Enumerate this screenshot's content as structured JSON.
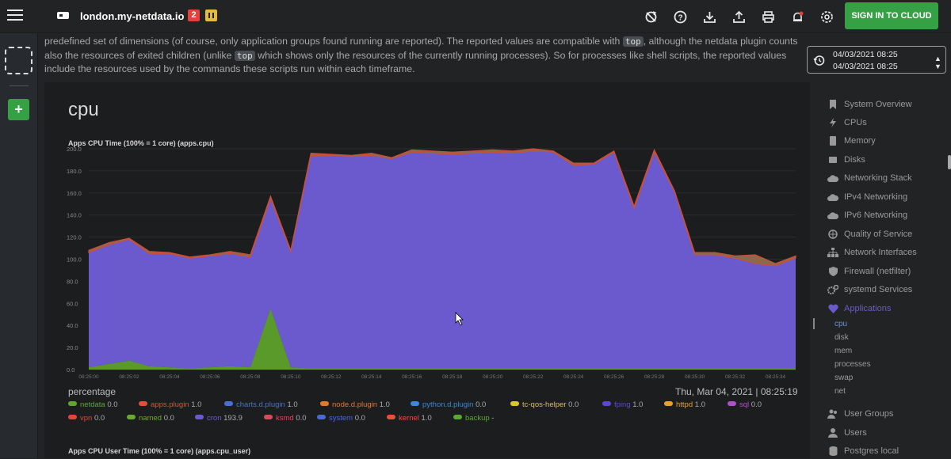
{
  "header": {
    "hostname": "london.my-netdata.io",
    "badge_red": "2",
    "badge_yellow": "",
    "sign_in_label": "SIGN IN TO CLOUD",
    "icons": [
      "sync-icon",
      "help-icon",
      "download-icon",
      "upload-icon",
      "print-icon",
      "alarm-icon",
      "gear-icon"
    ]
  },
  "intro": {
    "part1": "predefined set of dimensions (of course, only application groups found running are reported). The reported values are compatible with ",
    "code1": "top",
    "part2": ", although the netdata plugin counts also the resources of exited children (unlike ",
    "code2": "top",
    "part3": " which shows only the resources of the currently running processes). So for processes like shell scripts, the reported values include the resources used by the commands these scripts run within each timeframe."
  },
  "date_picker": {
    "from": "04/03/2021 08:25",
    "to": "04/03/2021 08:25"
  },
  "section": {
    "title": "cpu"
  },
  "chart1": {
    "title": "Apps CPU Time (100% = 1 core) (apps.cpu)",
    "units": "percentage",
    "timestamp": "Thu, Mar 04, 2021 | 08:25:19",
    "y_ticks": [
      "200.0",
      "180.0",
      "160.0",
      "140.0",
      "120.0",
      "100.0",
      "80.0",
      "60.0",
      "40.0",
      "20.0",
      "0.0"
    ],
    "x_ticks": [
      "08:25:00",
      "08:25:02",
      "08:25:04",
      "08:25:06",
      "08:25:08",
      "08:25:10",
      "08:25:12",
      "08:25:14",
      "08:25:16",
      "08:25:18",
      "08:25:20",
      "08:25:22",
      "08:25:24",
      "08:25:26",
      "08:25:28",
      "08:25:30",
      "08:25:32",
      "08:25:34"
    ]
  },
  "chart_data": {
    "type": "area",
    "ylim": [
      0,
      200
    ],
    "x": [
      "08:25:00",
      "08:25:01",
      "08:25:02",
      "08:25:03",
      "08:25:04",
      "08:25:05",
      "08:25:06",
      "08:25:07",
      "08:25:08",
      "08:25:09",
      "08:25:10",
      "08:25:11",
      "08:25:12",
      "08:25:13",
      "08:25:14",
      "08:25:15",
      "08:25:16",
      "08:25:17",
      "08:25:18",
      "08:25:19",
      "08:25:20",
      "08:25:21",
      "08:25:22",
      "08:25:23",
      "08:25:24",
      "08:25:25",
      "08:25:26",
      "08:25:27",
      "08:25:28",
      "08:25:29",
      "08:25:30",
      "08:25:31",
      "08:25:32",
      "08:25:33",
      "08:25:34",
      "08:25:35"
    ],
    "series": [
      {
        "name": "backup",
        "values": [
          2,
          5,
          8,
          3,
          2,
          1,
          2,
          3,
          2,
          55,
          2,
          1,
          1,
          1,
          1,
          1,
          1,
          1,
          1,
          1,
          1,
          1,
          1,
          1,
          1,
          1,
          1,
          1,
          1,
          1,
          1,
          1,
          1,
          1,
          1,
          1
        ]
      },
      {
        "name": "cron",
        "values": [
          104,
          108,
          110,
          102,
          103,
          100,
          101,
          102,
          100,
          100,
          105,
          193,
          193,
          192,
          193,
          190,
          196,
          195,
          194,
          195,
          196,
          195,
          197,
          196,
          184,
          185,
          196,
          145,
          196,
          160,
          103,
          103,
          100,
          95,
          93,
          100
        ]
      },
      {
        "name": "other",
        "values": [
          2,
          2,
          1,
          2,
          1,
          1,
          1,
          2,
          2,
          2,
          1,
          2,
          1,
          1,
          2,
          1,
          2,
          2,
          2,
          2,
          2,
          2,
          2,
          1,
          2,
          1,
          1,
          2,
          2,
          1,
          2,
          2,
          2,
          8,
          2,
          2
        ]
      }
    ]
  },
  "legend": {
    "row1": [
      {
        "name": "netdata",
        "value": "0.0",
        "color": "#5ea830"
      },
      {
        "name": "apps.plugin",
        "value": "1.0",
        "color": "#e84a3c"
      },
      {
        "name": "charts.d.plugin",
        "value": "1.0",
        "color": "#4a6fd0"
      },
      {
        "name": "node.d.plugin",
        "value": "1.0",
        "color": "#e07a2a"
      },
      {
        "name": "python.d.plugin",
        "value": "0.0",
        "color": "#3d86d8"
      },
      {
        "name": "tc-qos-helper",
        "value": "0.0",
        "color": "#d8c62a"
      },
      {
        "name": "fping",
        "value": "1.0",
        "color": "#5a48d0"
      },
      {
        "name": "httpd",
        "value": "1.0",
        "color": "#e8a030"
      },
      {
        "name": "sql",
        "value": "0.0",
        "color": "#b050c8"
      }
    ],
    "row2": [
      {
        "name": "vpn",
        "value": "0.0",
        "color": "#e0463c"
      },
      {
        "name": "named",
        "value": "0.0",
        "color": "#6aa830"
      },
      {
        "name": "cron",
        "value": "193.9",
        "color": "#6a5ad0"
      },
      {
        "name": "ksmd",
        "value": "0.0",
        "color": "#d84a58"
      },
      {
        "name": "system",
        "value": "0.0",
        "color": "#4a6ad0"
      },
      {
        "name": "kernel",
        "value": "1.0",
        "color": "#e8503c"
      },
      {
        "name": "backup",
        "value": "-",
        "color": "#5aa830"
      }
    ]
  },
  "chart2": {
    "title": "Apps CPU User Time (100% = 1 core) (apps.cpu_user)"
  },
  "nav": {
    "items": [
      {
        "label": "System Overview",
        "icon": "bookmark-icon"
      },
      {
        "label": "CPUs",
        "icon": "bolt-icon"
      },
      {
        "label": "Memory",
        "icon": "memory-icon"
      },
      {
        "label": "Disks",
        "icon": "disk-icon"
      },
      {
        "label": "Networking Stack",
        "icon": "cloud-icon"
      },
      {
        "label": "IPv4 Networking",
        "icon": "cloud-icon"
      },
      {
        "label": "IPv6 Networking",
        "icon": "cloud-icon"
      },
      {
        "label": "Quality of Service",
        "icon": "globe-icon"
      },
      {
        "label": "Network Interfaces",
        "icon": "sitemap-icon"
      },
      {
        "label": "Firewall (netfilter)",
        "icon": "shield-icon"
      },
      {
        "label": "systemd Services",
        "icon": "cogs-icon"
      },
      {
        "label": "Applications",
        "icon": "heart-icon"
      }
    ],
    "sub_items": [
      "cpu",
      "disk",
      "mem",
      "processes",
      "swap",
      "net"
    ],
    "items_after": [
      {
        "label": "User Groups",
        "icon": "users-icon"
      },
      {
        "label": "Users",
        "icon": "user-icon"
      },
      {
        "label": "Postgres local",
        "icon": "database-icon"
      }
    ]
  },
  "colors": {
    "accent": "#35a144",
    "cron_area": "#6a5acd",
    "backup_area": "#5a9a2a"
  }
}
